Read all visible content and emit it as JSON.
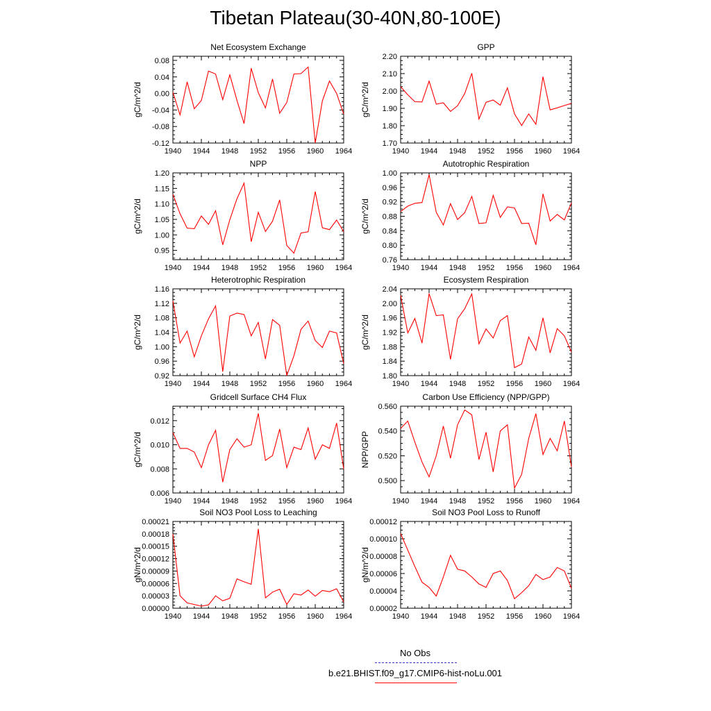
{
  "figure": {
    "title": "Tibetan Plateau(30-40N,80-100E)"
  },
  "legend": {
    "entries": [
      {
        "label": "No Obs",
        "color": "#3333cc",
        "style": "dashed"
      },
      {
        "label": "b.e21.BHIST.f09_g17.CMIP6-hist-noLu.001",
        "color": "#ff0000",
        "style": "solid"
      }
    ]
  },
  "chart_data": [
    {
      "type": "line",
      "title": "Net Ecosystem Exchange",
      "xlabel": "",
      "ylabel": "gC/m^2/d",
      "xlim": [
        1940,
        1964
      ],
      "ylim": [
        -0.12,
        0.09
      ],
      "xticks": [
        "1940",
        "1944",
        "1948",
        "1952",
        "1956",
        "1960",
        "1964"
      ],
      "yticks": [
        "-0.12",
        "-0.08",
        "-0.04",
        "0.00",
        "0.04",
        "0.08"
      ],
      "series": [
        {
          "color": "#ff0000",
          "x": [
            1940,
            1941,
            1942,
            1943,
            1944,
            1945,
            1946,
            1947,
            1948,
            1949,
            1950,
            1951,
            1952,
            1953,
            1954,
            1955,
            1956,
            1957,
            1958,
            1959,
            1960,
            1961,
            1962,
            1963,
            1964
          ],
          "values": [
            0.003,
            -0.052,
            0.028,
            -0.037,
            -0.017,
            0.054,
            0.047,
            -0.015,
            0.045,
            -0.017,
            -0.073,
            0.061,
            0.002,
            -0.035,
            0.035,
            -0.048,
            -0.022,
            0.047,
            0.048,
            0.064,
            -0.12,
            -0.018,
            0.03,
            0.0,
            -0.05
          ]
        }
      ]
    },
    {
      "type": "line",
      "title": "GPP",
      "xlabel": "",
      "ylabel": "gC/m^2/d",
      "xlim": [
        1940,
        1964
      ],
      "ylim": [
        1.7,
        2.2
      ],
      "xticks": [
        "1940",
        "1944",
        "1948",
        "1952",
        "1956",
        "1960",
        "1964"
      ],
      "yticks": [
        "1.70",
        "1.80",
        "1.90",
        "2.00",
        "2.10",
        "2.20"
      ],
      "series": [
        {
          "color": "#ff0000",
          "x": [
            1940,
            1941,
            1942,
            1943,
            1944,
            1945,
            1946,
            1947,
            1948,
            1949,
            1950,
            1951,
            1952,
            1953,
            1954,
            1955,
            1956,
            1957,
            1958,
            1959,
            1960,
            1961,
            1962,
            1963,
            1964
          ],
          "values": [
            2.025,
            1.978,
            1.938,
            1.937,
            2.057,
            1.924,
            1.932,
            1.882,
            1.915,
            1.985,
            2.102,
            1.838,
            1.935,
            1.948,
            1.918,
            2.018,
            1.868,
            1.801,
            1.868,
            1.808,
            2.082,
            1.891,
            1.903,
            1.916,
            1.929
          ]
        }
      ]
    },
    {
      "type": "line",
      "title": "NPP",
      "xlabel": "",
      "ylabel": "gC/m^2/d",
      "xlim": [
        1940,
        1964
      ],
      "ylim": [
        0.92,
        1.2
      ],
      "xticks": [
        "1940",
        "1944",
        "1948",
        "1952",
        "1956",
        "1960",
        "1964"
      ],
      "yticks": [
        "0.95",
        "1.00",
        "1.05",
        "1.10",
        "1.15",
        "1.20"
      ],
      "series": [
        {
          "color": "#ff0000",
          "x": [
            1940,
            1941,
            1942,
            1943,
            1944,
            1945,
            1946,
            1947,
            1948,
            1949,
            1950,
            1951,
            1952,
            1953,
            1954,
            1955,
            1956,
            1957,
            1958,
            1959,
            1960,
            1961,
            1962,
            1963,
            1964
          ],
          "values": [
            1.131,
            1.068,
            1.022,
            1.02,
            1.061,
            1.034,
            1.078,
            0.968,
            1.049,
            1.117,
            1.167,
            0.978,
            1.073,
            1.011,
            1.044,
            1.113,
            0.966,
            0.941,
            1.006,
            1.01,
            1.14,
            1.023,
            1.017,
            1.048,
            1.01
          ]
        }
      ]
    },
    {
      "type": "line",
      "title": "Autotrophic Respiration",
      "xlabel": "",
      "ylabel": "gC/m^2/d",
      "xlim": [
        1940,
        1964
      ],
      "ylim": [
        0.76,
        1.0
      ],
      "xticks": [
        "1940",
        "1944",
        "1948",
        "1952",
        "1956",
        "1960",
        "1964"
      ],
      "yticks": [
        "0.76",
        "0.80",
        "0.84",
        "0.88",
        "0.92",
        "0.96",
        "1.00"
      ],
      "series": [
        {
          "color": "#ff0000",
          "x": [
            1940,
            1941,
            1942,
            1943,
            1944,
            1945,
            1946,
            1947,
            1948,
            1949,
            1950,
            1951,
            1952,
            1953,
            1954,
            1955,
            1956,
            1957,
            1958,
            1959,
            1960,
            1961,
            1962,
            1963,
            1964
          ],
          "values": [
            0.893,
            0.908,
            0.916,
            0.918,
            0.995,
            0.891,
            0.856,
            0.915,
            0.871,
            0.89,
            0.935,
            0.86,
            0.862,
            0.938,
            0.877,
            0.906,
            0.903,
            0.86,
            0.861,
            0.801,
            0.942,
            0.867,
            0.885,
            0.87,
            0.917
          ]
        }
      ]
    },
    {
      "type": "line",
      "title": "Heterotrophic Respiration",
      "xlabel": "",
      "ylabel": "gC/m^2/d",
      "xlim": [
        1940,
        1964
      ],
      "ylim": [
        0.92,
        1.16
      ],
      "xticks": [
        "1940",
        "1944",
        "1948",
        "1952",
        "1956",
        "1960",
        "1964"
      ],
      "yticks": [
        "0.92",
        "0.96",
        "1.00",
        "1.04",
        "1.08",
        "1.12",
        "1.16"
      ],
      "series": [
        {
          "color": "#ff0000",
          "x": [
            1940,
            1941,
            1942,
            1943,
            1944,
            1945,
            1946,
            1947,
            1948,
            1949,
            1950,
            1951,
            1952,
            1953,
            1954,
            1955,
            1956,
            1957,
            1958,
            1959,
            1960,
            1961,
            1962,
            1963,
            1964
          ],
          "values": [
            1.127,
            1.01,
            1.043,
            0.972,
            1.03,
            1.077,
            1.113,
            0.931,
            1.085,
            1.093,
            1.089,
            1.03,
            1.067,
            0.966,
            1.075,
            1.059,
            0.92,
            0.975,
            1.048,
            1.071,
            1.017,
            0.998,
            1.043,
            1.038,
            0.953
          ]
        }
      ]
    },
    {
      "type": "line",
      "title": "Ecosystem Respiration",
      "xlabel": "",
      "ylabel": "gC/m^2/d",
      "xlim": [
        1940,
        1964
      ],
      "ylim": [
        1.8,
        2.04
      ],
      "xticks": [
        "1940",
        "1944",
        "1948",
        "1952",
        "1956",
        "1960",
        "1964"
      ],
      "yticks": [
        "1.80",
        "1.84",
        "1.88",
        "1.92",
        "1.96",
        "2.00",
        "2.04"
      ],
      "series": [
        {
          "color": "#ff0000",
          "x": [
            1940,
            1941,
            1942,
            1943,
            1944,
            1945,
            1946,
            1947,
            1948,
            1949,
            1950,
            1951,
            1952,
            1953,
            1954,
            1955,
            1956,
            1957,
            1958,
            1959,
            1960,
            1961,
            1962,
            1963,
            1964
          ],
          "values": [
            2.022,
            1.918,
            1.958,
            1.89,
            2.027,
            1.966,
            1.968,
            1.845,
            1.957,
            1.985,
            2.026,
            1.888,
            1.929,
            1.904,
            1.952,
            1.966,
            1.822,
            1.832,
            1.907,
            1.87,
            1.96,
            1.863,
            1.93,
            1.91,
            1.865
          ]
        }
      ]
    },
    {
      "type": "line",
      "title": "Gridcell Surface CH4 Flux",
      "xlabel": "",
      "ylabel": "gC/m^2/d",
      "xlim": [
        1940,
        1964
      ],
      "ylim": [
        0.006,
        0.0132
      ],
      "xticks": [
        "1940",
        "1944",
        "1948",
        "1952",
        "1956",
        "1960",
        "1964"
      ],
      "yticks": [
        "0.006",
        "0.008",
        "0.010",
        "0.012"
      ],
      "series": [
        {
          "color": "#ff0000",
          "x": [
            1940,
            1941,
            1942,
            1943,
            1944,
            1945,
            1946,
            1947,
            1948,
            1949,
            1950,
            1951,
            1952,
            1953,
            1954,
            1955,
            1956,
            1957,
            1958,
            1959,
            1960,
            1961,
            1962,
            1963,
            1964
          ],
          "values": [
            0.011,
            0.0097,
            0.0097,
            0.0094,
            0.0081,
            0.01,
            0.0112,
            0.0069,
            0.0096,
            0.0105,
            0.0098,
            0.01,
            0.0126,
            0.0087,
            0.0091,
            0.0113,
            0.0081,
            0.0098,
            0.0096,
            0.0114,
            0.0088,
            0.01,
            0.0097,
            0.0118,
            0.008
          ]
        }
      ]
    },
    {
      "type": "line",
      "title": "Carbon Use Efficiency (NPP/GPP)",
      "xlabel": "",
      "ylabel": "NPP/GPP",
      "xlim": [
        1940,
        1964
      ],
      "ylim": [
        0.49,
        0.56
      ],
      "xticks": [
        "1940",
        "1944",
        "1948",
        "1952",
        "1956",
        "1960",
        "1964"
      ],
      "yticks": [
        "0.500",
        "0.520",
        "0.540",
        "0.560"
      ],
      "series": [
        {
          "color": "#ff0000",
          "x": [
            1940,
            1941,
            1942,
            1943,
            1944,
            1945,
            1946,
            1947,
            1948,
            1949,
            1950,
            1951,
            1952,
            1953,
            1954,
            1955,
            1956,
            1957,
            1958,
            1959,
            1960,
            1961,
            1962,
            1963,
            1964
          ],
          "values": [
            0.542,
            0.548,
            0.531,
            0.515,
            0.503,
            0.52,
            0.544,
            0.518,
            0.545,
            0.557,
            0.553,
            0.517,
            0.539,
            0.507,
            0.54,
            0.545,
            0.494,
            0.505,
            0.534,
            0.554,
            0.521,
            0.534,
            0.524,
            0.548,
            0.511
          ]
        }
      ]
    },
    {
      "type": "line",
      "title": "Soil NO3 Pool Loss to Leaching",
      "xlabel": "",
      "ylabel": "gN/m^2/d",
      "xlim": [
        1940,
        1964
      ],
      "ylim": [
        0.0,
        0.00021
      ],
      "xticks": [
        "1940",
        "1944",
        "1948",
        "1952",
        "1956",
        "1960",
        "1964"
      ],
      "yticks": [
        "0.00000",
        "0.00003",
        "0.00006",
        "0.00009",
        "0.00012",
        "0.00015",
        "0.00018",
        "0.00021"
      ],
      "series": [
        {
          "color": "#ff0000",
          "x": [
            1940,
            1941,
            1942,
            1943,
            1944,
            1945,
            1946,
            1947,
            1948,
            1949,
            1950,
            1951,
            1952,
            1953,
            1954,
            1955,
            1956,
            1957,
            1958,
            1959,
            1960,
            1961,
            1962,
            1963,
            1964
          ],
          "values": [
            0.00018,
            3e-05,
            1.3e-05,
            9e-06,
            5e-06,
            8e-06,
            3e-05,
            1.8e-05,
            2.4e-05,
            7.1e-05,
            6.4e-05,
            5.8e-05,
            0.000192,
            2.5e-05,
            3.9e-05,
            4.6e-05,
            9e-06,
            3.5e-05,
            3.2e-05,
            4.4e-05,
            2.9e-05,
            4.3e-05,
            4e-05,
            4.7e-05,
            1.5e-05
          ]
        }
      ]
    },
    {
      "type": "line",
      "title": "Soil NO3 Pool Loss to Runoff",
      "xlabel": "",
      "ylabel": "gN/m^2/d",
      "xlim": [
        1940,
        1964
      ],
      "ylim": [
        2e-05,
        0.00012
      ],
      "xticks": [
        "1940",
        "1944",
        "1948",
        "1952",
        "1956",
        "1960",
        "1964"
      ],
      "yticks": [
        "0.00002",
        "0.00004",
        "0.00006",
        "0.00008",
        "0.00010",
        "0.00012"
      ],
      "series": [
        {
          "color": "#ff0000",
          "x": [
            1940,
            1941,
            1942,
            1943,
            1944,
            1945,
            1946,
            1947,
            1948,
            1949,
            1950,
            1951,
            1952,
            1953,
            1954,
            1955,
            1956,
            1957,
            1958,
            1959,
            1960,
            1961,
            1962,
            1963,
            1964
          ],
          "values": [
            0.000106,
            8.7e-05,
            6.8e-05,
            5e-05,
            4.4e-05,
            3.4e-05,
            5.6e-05,
            8.1e-05,
            6.5e-05,
            6.3e-05,
            5.6e-05,
            4.8e-05,
            4.4e-05,
            6e-05,
            6.3e-05,
            5.2e-05,
            3.1e-05,
            3.8e-05,
            4.6e-05,
            5.9e-05,
            5.3e-05,
            5.6e-05,
            6.7e-05,
            6.3e-05,
            4.3e-05
          ]
        }
      ]
    }
  ]
}
